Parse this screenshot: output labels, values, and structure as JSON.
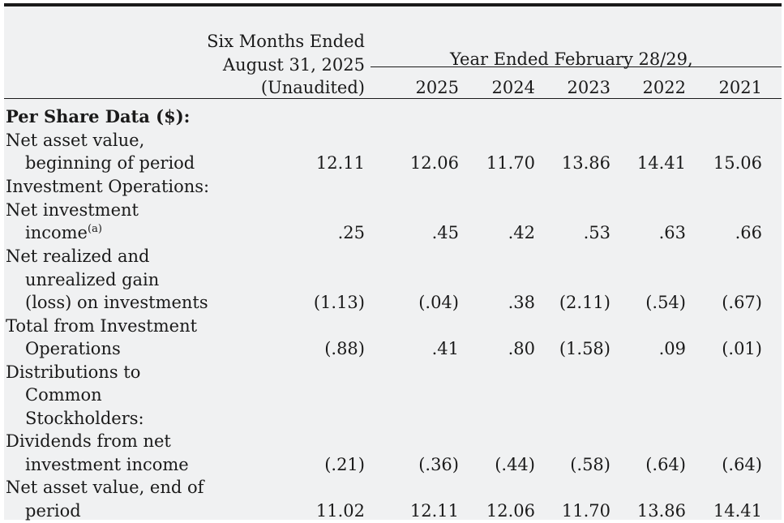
{
  "header": {
    "six_line1": "Six Months Ended",
    "six_line2": "August 31, 2025",
    "six_line3": "(Unaudited)",
    "year_span": "Year Ended February 28/29,",
    "years": [
      "2025",
      "2024",
      "2023",
      "2022",
      "2021"
    ]
  },
  "section_title": "Per Share Data ($):",
  "rows": {
    "nav_begin": {
      "label1": "Net asset value,",
      "label2": "beginning of period",
      "values": [
        "12.11",
        "12.06",
        "11.70",
        "13.86",
        "14.41",
        "15.06"
      ]
    },
    "inv_ops": {
      "label1": "Investment Operations:"
    },
    "nii": {
      "label1": "Net investment",
      "label2": "income",
      "footnote": "(a)",
      "values": [
        ".25",
        ".45",
        ".42",
        ".53",
        ".63",
        ".66"
      ]
    },
    "realized": {
      "label1": "Net realized and",
      "label2": "unrealized gain",
      "label3": "(loss) on investments",
      "values": [
        "(1.13)",
        "(.04)",
        ".38",
        "(2.11)",
        "(.54)",
        "(.67)"
      ]
    },
    "total_ops": {
      "label1": "Total from Investment",
      "label2": "Operations",
      "values": [
        "(.88)",
        ".41",
        ".80",
        "(1.58)",
        ".09",
        "(.01)"
      ]
    },
    "distributions": {
      "label1": "Distributions to",
      "label2": "Common",
      "label3": "Stockholders:"
    },
    "dividends": {
      "label1": "Dividends from net",
      "label2": "investment income",
      "values": [
        "(.21)",
        "(.36)",
        "(.44)",
        "(.58)",
        "(.64)",
        "(.64)"
      ]
    },
    "nav_end": {
      "label1": "Net asset value, end of",
      "label2": "period",
      "values": [
        "11.02",
        "12.11",
        "12.06",
        "11.70",
        "13.86",
        "14.41"
      ]
    }
  }
}
